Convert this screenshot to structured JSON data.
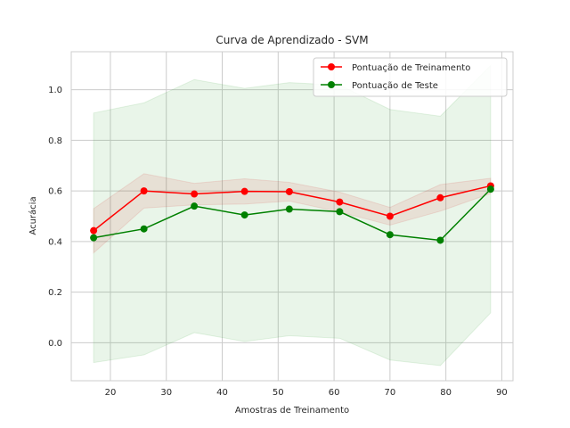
{
  "chart_data": {
    "type": "line",
    "title": "Curva de Aprendizado - SVM",
    "xlabel": "Amostras de Treinamento",
    "ylabel": "Acurácia",
    "xlim": [
      13,
      92
    ],
    "ylim": [
      -0.15,
      1.15
    ],
    "xticks": [
      20,
      30,
      40,
      50,
      60,
      70,
      80,
      90
    ],
    "yticks": [
      0.0,
      0.2,
      0.4,
      0.6,
      0.8,
      1.0
    ],
    "xtick_labels": [
      "20",
      "30",
      "40",
      "50",
      "60",
      "70",
      "80",
      "90"
    ],
    "ytick_labels": [
      "0.0",
      "0.2",
      "0.4",
      "0.6",
      "0.8",
      "1.0"
    ],
    "grid": true,
    "legend_position": "top-right",
    "x": [
      17,
      26,
      35,
      44,
      52,
      61,
      70,
      79,
      88
    ],
    "series": [
      {
        "name": "Pontuação de Treinamento",
        "color": "#ff0000",
        "band_color": "#d62728",
        "values": [
          0.443,
          0.6,
          0.588,
          0.598,
          0.597,
          0.556,
          0.5,
          0.573,
          0.62
        ],
        "band_lower": [
          0.355,
          0.532,
          0.545,
          0.548,
          0.56,
          0.517,
          0.465,
          0.52,
          0.59
        ],
        "band_upper": [
          0.53,
          0.668,
          0.63,
          0.648,
          0.634,
          0.595,
          0.535,
          0.625,
          0.65
        ]
      },
      {
        "name": "Pontuação de Teste",
        "color": "#008000",
        "band_color": "#2ca02c",
        "values": [
          0.415,
          0.45,
          0.54,
          0.505,
          0.528,
          0.518,
          0.427,
          0.405,
          0.607
        ],
        "band_lower": [
          -0.078,
          -0.048,
          0.04,
          0.005,
          0.028,
          0.018,
          -0.068,
          -0.09,
          0.118
        ],
        "band_upper": [
          0.908,
          0.948,
          1.04,
          1.005,
          1.028,
          1.018,
          0.922,
          0.895,
          1.096
        ]
      }
    ]
  }
}
